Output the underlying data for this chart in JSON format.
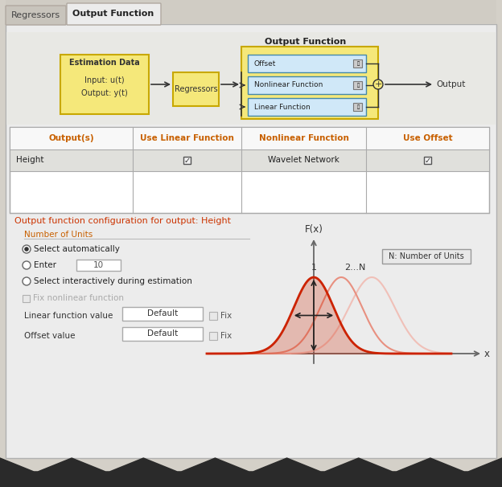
{
  "bg_color": "#d4d0c8",
  "panel_color": "#ececec",
  "tab_active": "Output Function",
  "tab_inactive": "Regressors",
  "title_text": "Output Function",
  "block_estim_label": "Estimation Data",
  "block_regressor_label": "Regressors",
  "block_offset_label": "Offset",
  "block_nonlinear_label": "Nonlinear Function",
  "block_linear_label": "Linear Function",
  "output_label": "Output",
  "table_headers": [
    "Output(s)",
    "Use Linear Function",
    "Nonlinear Function",
    "Use Offset"
  ],
  "table_row_label": "Height",
  "table_nonlinear": "Wavelet Network",
  "config_title_pre": "Output function configuration for output: ",
  "config_title_var": "Height",
  "section_units": "Number of Units",
  "radio_options": [
    "Select automatically",
    "Enter",
    "Select interactively during estimation"
  ],
  "enter_value": "10",
  "checkbox_fix_nonlinear": "Fix nonlinear function",
  "linear_function_label": "Linear function value",
  "linear_function_value": "Default",
  "offset_label": "Offset value",
  "offset_value": "Default",
  "fix_label": "Fix",
  "plot_xlabel": "x",
  "plot_ylabel": "F(x)",
  "plot_legend": "N: Number of Units",
  "accent_color": "#cc2200",
  "accent_color2": "#e89080",
  "accent_color3": "#f0c0b8",
  "header_color": "#c86000",
  "config_color_pre": "#333333",
  "config_color_var": "#cc2200",
  "tab_bg": "#e8e4dc",
  "yellow_fill": "#f5e87a",
  "yellow_border": "#c8a800",
  "blue_fill": "#d0e8f8",
  "blue_border": "#4488aa",
  "diag_bg": "#e8e8e4"
}
